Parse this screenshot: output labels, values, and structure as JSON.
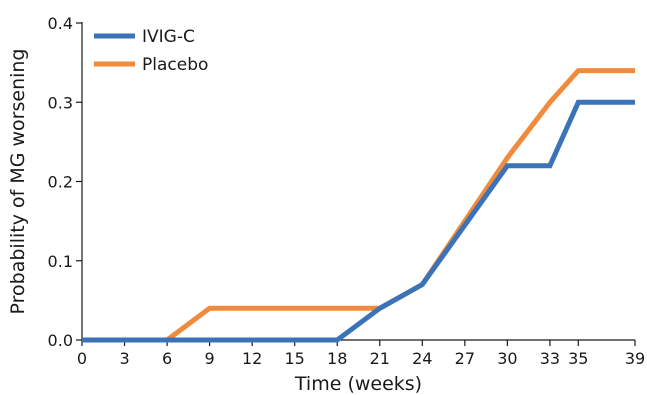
{
  "chart_data": {
    "type": "line",
    "title": "",
    "xlabel": "Time (weeks)",
    "ylabel": "Probability of MG worsening",
    "x_ticks": [
      "0",
      "3",
      "6",
      "9",
      "12",
      "15",
      "18",
      "21",
      "24",
      "27",
      "30",
      "33",
      "35",
      "39"
    ],
    "x_tick_values": [
      0,
      3,
      6,
      9,
      12,
      15,
      18,
      21,
      24,
      27,
      30,
      33,
      35,
      39
    ],
    "y_ticks": [
      "0.0",
      "0.1",
      "0.2",
      "0.3",
      "0.4"
    ],
    "y_tick_values": [
      0,
      0.1,
      0.2,
      0.3,
      0.4
    ],
    "ylim": [
      0,
      0.4
    ],
    "grid": false,
    "legend_position": "top-left",
    "series": [
      {
        "name": "IVIG-C",
        "color": "#3a73b8",
        "points": [
          [
            0,
            0
          ],
          [
            6,
            0
          ],
          [
            18,
            0
          ],
          [
            21,
            0.04
          ],
          [
            24,
            0.07
          ],
          [
            30,
            0.22
          ],
          [
            33,
            0.22
          ],
          [
            35,
            0.3
          ],
          [
            39,
            0.3
          ]
        ]
      },
      {
        "name": "Placebo",
        "color": "#f08a3c",
        "points": [
          [
            0,
            0
          ],
          [
            6,
            0
          ],
          [
            9,
            0.04
          ],
          [
            21,
            0.04
          ],
          [
            24,
            0.07
          ],
          [
            30,
            0.23
          ],
          [
            33,
            0.3
          ],
          [
            35,
            0.34
          ],
          [
            39,
            0.34
          ]
        ]
      }
    ]
  }
}
